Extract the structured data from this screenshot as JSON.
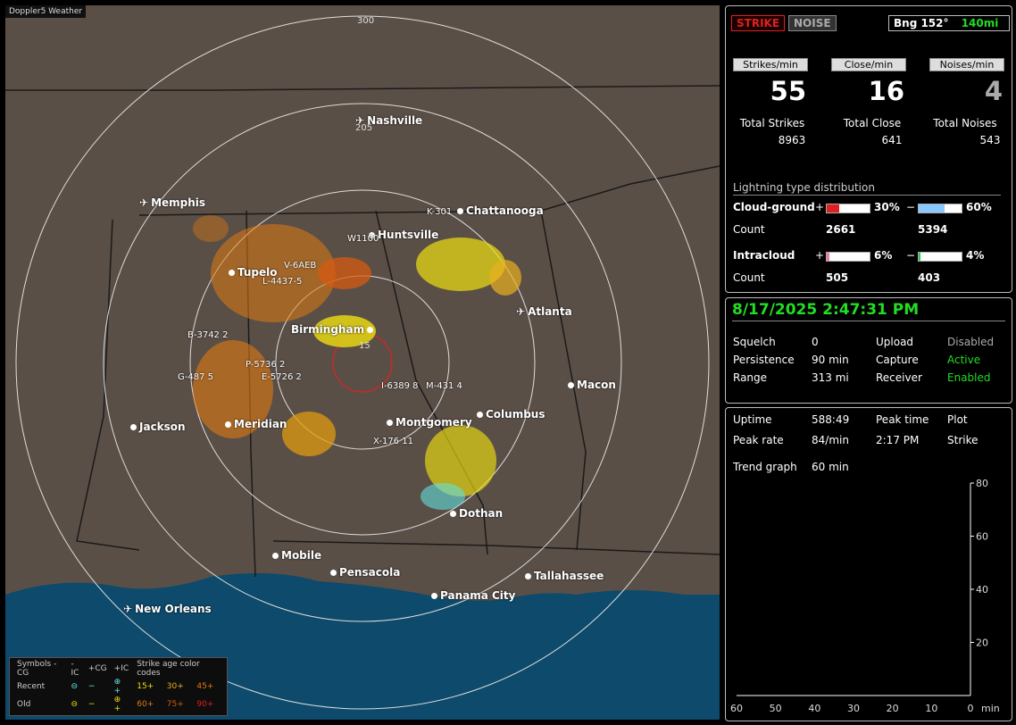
{
  "map": {
    "title": "Doppler5 Weather",
    "ring_labels": [
      "300",
      "205",
      "15"
    ],
    "cities": [
      {
        "name": "Nashville",
        "icon": "airport-icon"
      },
      {
        "name": "Memphis",
        "icon": "airport-icon"
      },
      {
        "name": "Chattanooga",
        "icon": "city-dot"
      },
      {
        "name": "Huntsville",
        "icon": "city-dot"
      },
      {
        "name": "Tupelo",
        "icon": "city-dot"
      },
      {
        "name": "Atlanta",
        "icon": "airport-icon"
      },
      {
        "name": "Birmingham",
        "icon": "city-dot"
      },
      {
        "name": "Macon",
        "icon": "city-dot"
      },
      {
        "name": "Jackson",
        "icon": "city-dot"
      },
      {
        "name": "Meridian",
        "icon": "city-dot"
      },
      {
        "name": "Montgomery",
        "icon": "city-dot"
      },
      {
        "name": "Columbus",
        "icon": "city-dot"
      },
      {
        "name": "Dothan",
        "icon": "city-dot"
      },
      {
        "name": "Mobile",
        "icon": "city-dot"
      },
      {
        "name": "Pensacola",
        "icon": "city-dot"
      },
      {
        "name": "Tallahassee",
        "icon": "city-dot"
      },
      {
        "name": "Panama City",
        "icon": "city-dot"
      },
      {
        "name": "New Orleans",
        "icon": "airport-icon"
      }
    ],
    "storm_tags": [
      "K-301",
      "W1100",
      "V-6AEB",
      "L-4437-5",
      "B-3742 2",
      "P-5736 2",
      "G-487 5",
      "E-5726 2",
      "I-6389 8",
      "M-431 4",
      "X-176 11"
    ],
    "legend": {
      "header": [
        "Symbols -CG",
        "-IC",
        "+CG",
        "+IC",
        "Strike age color codes"
      ],
      "recent": {
        "label": "Recent",
        "ages": [
          "15+",
          "30+",
          "45+"
        ]
      },
      "old": {
        "label": "Old",
        "ages": [
          "60+",
          "75+",
          "90+"
        ]
      }
    }
  },
  "top": {
    "strike_button": "STRIKE",
    "noise_button": "NOISE",
    "bearing": "Bng 152°",
    "distance": "140mi",
    "rate_headers": [
      "Strikes/min",
      "Close/min",
      "Noises/min"
    ],
    "rates": [
      "55",
      "16",
      "4"
    ],
    "total_labels": [
      "Total Strikes",
      "Total Close",
      "Total Noises"
    ],
    "totals": [
      "8963",
      "641",
      "543"
    ],
    "dist_title": "Lightning type distribution",
    "cloud_ground": {
      "label": "Cloud-ground",
      "pos_pct": "30%",
      "neg_pct": "60%",
      "pos": 0.3,
      "neg": 0.6,
      "count_pos": "2661",
      "count_neg": "5394"
    },
    "intracloud": {
      "label": "Intracloud",
      "pos_pct": "6%",
      "neg_pct": "4%",
      "pos": 0.06,
      "neg": 0.04,
      "count_pos": "505",
      "count_neg": "403"
    },
    "count_label": "Count",
    "plus": "+",
    "minus": "−"
  },
  "status": {
    "datetime": "8/17/2025 2:47:31 PM",
    "rows": [
      [
        "Squelch",
        "0",
        "Upload",
        "Disabled"
      ],
      [
        "Persistence",
        "90 min",
        "Capture",
        "Active"
      ],
      [
        "Range",
        "313 mi",
        "Receiver",
        "Enabled"
      ]
    ]
  },
  "trend": {
    "uptime_label": "Uptime",
    "uptime": "588:49",
    "peak_time_label": "Peak time",
    "peak_time": "2:17 PM",
    "plot_label": "Plot",
    "plot": "Strike",
    "peak_rate_label": "Peak rate",
    "peak_rate": "84/min",
    "graph_label": "Trend graph",
    "graph_span": "60 min",
    "y_ticks": [
      "80",
      "60",
      "40",
      "20"
    ],
    "x_ticks": [
      "60",
      "50",
      "40",
      "30",
      "20",
      "10",
      "0"
    ],
    "x_unit": "min"
  },
  "colors": {
    "accent_green": "#22dd22",
    "strike_red": "#e02020",
    "bar_blue": "#88c8ff",
    "bar_pink": "#e87ab0",
    "bar_green": "#22cc44"
  }
}
